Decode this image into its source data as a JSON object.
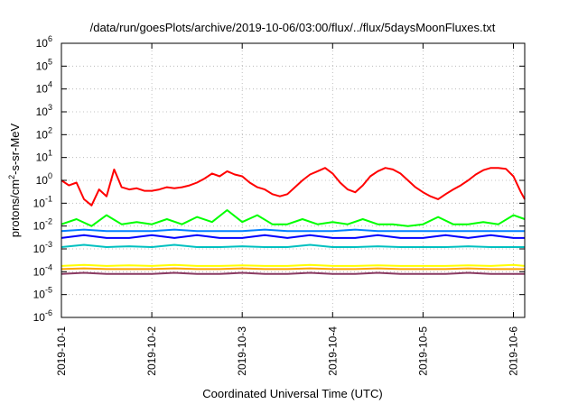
{
  "chart_data": {
    "type": "line",
    "title": "/data/run/goesPlots/archive/2019-10-06/03:00/flux/../flux/5daysMoonFluxes.txt",
    "xlabel": "Coordinated Universal Time (UTC)",
    "ylabel": {
      "pre": "protons/cm",
      "sup": "2",
      "post": "-s-sr-MeV"
    },
    "x_range": [
      "2019-10-01T00:00",
      "2019-10-06T03:00"
    ],
    "y_scale": "log",
    "ylim": [
      1e-06,
      1000000.0
    ],
    "grid": true,
    "legend": "none",
    "x_ticks": [
      "2019-10-1",
      "2019-10-2",
      "2019-10-3",
      "2019-10-4",
      "2019-10-5",
      "2019-10-6"
    ],
    "y_ticks": [
      {
        "base": "10",
        "exp": "6"
      },
      {
        "base": "10",
        "exp": "5"
      },
      {
        "base": "10",
        "exp": "4"
      },
      {
        "base": "10",
        "exp": "3"
      },
      {
        "base": "10",
        "exp": "2"
      },
      {
        "base": "10",
        "exp": "1"
      },
      {
        "base": "10",
        "exp": "0"
      },
      {
        "base": "10",
        "exp": "-1"
      },
      {
        "base": "10",
        "exp": "-2"
      },
      {
        "base": "10",
        "exp": "-3"
      },
      {
        "base": "10",
        "exp": "-4"
      },
      {
        "base": "10",
        "exp": "-5"
      },
      {
        "base": "10",
        "exp": "-6"
      }
    ],
    "series": [
      {
        "color": "#ff0000",
        "x": [
          "2019-10-01T00:00",
          "2019-10-01T02:00",
          "2019-10-01T04:00",
          "2019-10-01T06:00",
          "2019-10-01T08:00",
          "2019-10-01T10:00",
          "2019-10-01T12:00",
          "2019-10-01T14:00",
          "2019-10-01T16:00",
          "2019-10-01T18:00",
          "2019-10-01T20:00",
          "2019-10-01T22:00",
          "2019-10-02T00:00",
          "2019-10-02T02:00",
          "2019-10-02T04:00",
          "2019-10-02T06:00",
          "2019-10-02T08:00",
          "2019-10-02T10:00",
          "2019-10-02T12:00",
          "2019-10-02T14:00",
          "2019-10-02T16:00",
          "2019-10-02T18:00",
          "2019-10-02T20:00",
          "2019-10-02T22:00",
          "2019-10-03T00:00",
          "2019-10-03T02:00",
          "2019-10-03T04:00",
          "2019-10-03T06:00",
          "2019-10-03T08:00",
          "2019-10-03T10:00",
          "2019-10-03T12:00",
          "2019-10-03T14:00",
          "2019-10-03T16:00",
          "2019-10-03T18:00",
          "2019-10-03T20:00",
          "2019-10-03T22:00",
          "2019-10-04T00:00",
          "2019-10-04T02:00",
          "2019-10-04T04:00",
          "2019-10-04T06:00",
          "2019-10-04T08:00",
          "2019-10-04T10:00",
          "2019-10-04T12:00",
          "2019-10-04T14:00",
          "2019-10-04T16:00",
          "2019-10-04T18:00",
          "2019-10-04T20:00",
          "2019-10-04T22:00",
          "2019-10-05T00:00",
          "2019-10-05T02:00",
          "2019-10-05T04:00",
          "2019-10-05T06:00",
          "2019-10-05T08:00",
          "2019-10-05T10:00",
          "2019-10-05T12:00",
          "2019-10-05T14:00",
          "2019-10-05T16:00",
          "2019-10-05T18:00",
          "2019-10-05T20:00",
          "2019-10-05T22:00",
          "2019-10-06T00:00",
          "2019-10-06T02:00",
          "2019-10-06T03:00"
        ],
        "y": [
          1.0,
          0.6,
          0.8,
          0.15,
          0.08,
          0.4,
          0.2,
          3.0,
          0.5,
          0.4,
          0.45,
          0.35,
          0.35,
          0.4,
          0.5,
          0.45,
          0.5,
          0.6,
          0.8,
          1.2,
          2.0,
          1.5,
          2.5,
          1.8,
          1.5,
          0.8,
          0.5,
          0.4,
          0.25,
          0.2,
          0.25,
          0.5,
          1.0,
          1.8,
          2.5,
          3.5,
          2.0,
          0.8,
          0.4,
          0.3,
          0.6,
          1.5,
          2.5,
          3.5,
          3.0,
          2.0,
          1.0,
          0.5,
          0.3,
          0.2,
          0.15,
          0.25,
          0.4,
          0.6,
          1.0,
          1.8,
          2.8,
          3.5,
          3.5,
          3.2,
          1.5,
          0.3,
          0.15
        ]
      },
      {
        "color": "#00ff00",
        "x": [
          "2019-10-01T00:00",
          "2019-10-01T04:00",
          "2019-10-01T08:00",
          "2019-10-01T12:00",
          "2019-10-01T16:00",
          "2019-10-01T20:00",
          "2019-10-02T00:00",
          "2019-10-02T04:00",
          "2019-10-02T08:00",
          "2019-10-02T12:00",
          "2019-10-02T16:00",
          "2019-10-02T20:00",
          "2019-10-03T00:00",
          "2019-10-03T04:00",
          "2019-10-03T08:00",
          "2019-10-03T12:00",
          "2019-10-03T16:00",
          "2019-10-03T20:00",
          "2019-10-04T00:00",
          "2019-10-04T04:00",
          "2019-10-04T08:00",
          "2019-10-04T12:00",
          "2019-10-04T16:00",
          "2019-10-04T20:00",
          "2019-10-05T00:00",
          "2019-10-05T04:00",
          "2019-10-05T08:00",
          "2019-10-05T12:00",
          "2019-10-05T16:00",
          "2019-10-05T20:00",
          "2019-10-06T00:00",
          "2019-10-06T03:00"
        ],
        "y": [
          0.012,
          0.02,
          0.01,
          0.03,
          0.012,
          0.015,
          0.012,
          0.02,
          0.012,
          0.025,
          0.015,
          0.05,
          0.015,
          0.03,
          0.012,
          0.012,
          0.02,
          0.012,
          0.015,
          0.012,
          0.02,
          0.012,
          0.012,
          0.01,
          0.012,
          0.025,
          0.012,
          0.012,
          0.015,
          0.012,
          0.03,
          0.02
        ]
      },
      {
        "color": "#0080ff",
        "x": [
          "2019-10-01T00:00",
          "2019-10-01T06:00",
          "2019-10-01T12:00",
          "2019-10-01T18:00",
          "2019-10-02T00:00",
          "2019-10-02T06:00",
          "2019-10-02T12:00",
          "2019-10-02T18:00",
          "2019-10-03T00:00",
          "2019-10-03T06:00",
          "2019-10-03T12:00",
          "2019-10-03T18:00",
          "2019-10-04T00:00",
          "2019-10-04T06:00",
          "2019-10-04T12:00",
          "2019-10-04T18:00",
          "2019-10-05T00:00",
          "2019-10-05T06:00",
          "2019-10-05T12:00",
          "2019-10-05T18:00",
          "2019-10-06T00:00",
          "2019-10-06T03:00"
        ],
        "y": [
          0.006,
          0.007,
          0.006,
          0.006,
          0.006,
          0.007,
          0.006,
          0.006,
          0.006,
          0.007,
          0.006,
          0.006,
          0.006,
          0.007,
          0.006,
          0.006,
          0.006,
          0.006,
          0.006,
          0.006,
          0.006,
          0.006
        ]
      },
      {
        "color": "#0000ff",
        "x": [
          "2019-10-01T00:00",
          "2019-10-01T06:00",
          "2019-10-01T12:00",
          "2019-10-01T18:00",
          "2019-10-02T00:00",
          "2019-10-02T06:00",
          "2019-10-02T12:00",
          "2019-10-02T18:00",
          "2019-10-03T00:00",
          "2019-10-03T06:00",
          "2019-10-03T12:00",
          "2019-10-03T18:00",
          "2019-10-04T00:00",
          "2019-10-04T06:00",
          "2019-10-04T12:00",
          "2019-10-04T18:00",
          "2019-10-05T00:00",
          "2019-10-05T06:00",
          "2019-10-05T12:00",
          "2019-10-05T18:00",
          "2019-10-06T00:00",
          "2019-10-06T03:00"
        ],
        "y": [
          0.003,
          0.004,
          0.003,
          0.003,
          0.004,
          0.003,
          0.004,
          0.003,
          0.003,
          0.004,
          0.003,
          0.004,
          0.003,
          0.003,
          0.004,
          0.003,
          0.003,
          0.004,
          0.003,
          0.004,
          0.003,
          0.003
        ]
      },
      {
        "color": "#00c0c0",
        "x": [
          "2019-10-01T00:00",
          "2019-10-01T06:00",
          "2019-10-01T12:00",
          "2019-10-01T18:00",
          "2019-10-02T00:00",
          "2019-10-02T06:00",
          "2019-10-02T12:00",
          "2019-10-02T18:00",
          "2019-10-03T00:00",
          "2019-10-03T06:00",
          "2019-10-03T12:00",
          "2019-10-03T18:00",
          "2019-10-04T00:00",
          "2019-10-04T06:00",
          "2019-10-04T12:00",
          "2019-10-04T18:00",
          "2019-10-05T00:00",
          "2019-10-05T06:00",
          "2019-10-05T12:00",
          "2019-10-05T18:00",
          "2019-10-06T00:00",
          "2019-10-06T03:00"
        ],
        "y": [
          0.0012,
          0.0015,
          0.0012,
          0.0013,
          0.0012,
          0.0015,
          0.0012,
          0.0012,
          0.0013,
          0.0012,
          0.0012,
          0.0015,
          0.0012,
          0.0012,
          0.0013,
          0.0012,
          0.0012,
          0.0012,
          0.0013,
          0.0012,
          0.0012,
          0.0012
        ]
      },
      {
        "color": "#ffff00",
        "x": [
          "2019-10-01T00:00",
          "2019-10-01T06:00",
          "2019-10-01T12:00",
          "2019-10-01T18:00",
          "2019-10-02T00:00",
          "2019-10-02T06:00",
          "2019-10-02T12:00",
          "2019-10-02T18:00",
          "2019-10-03T00:00",
          "2019-10-03T06:00",
          "2019-10-03T12:00",
          "2019-10-03T18:00",
          "2019-10-04T00:00",
          "2019-10-04T06:00",
          "2019-10-04T12:00",
          "2019-10-04T18:00",
          "2019-10-05T00:00",
          "2019-10-05T06:00",
          "2019-10-05T12:00",
          "2019-10-05T18:00",
          "2019-10-06T00:00",
          "2019-10-06T03:00"
        ],
        "y": [
          0.00018,
          0.0002,
          0.00018,
          0.00019,
          0.00018,
          0.0002,
          0.00018,
          0.00018,
          0.00019,
          0.00018,
          0.00018,
          0.0002,
          0.00018,
          0.00018,
          0.00019,
          0.00018,
          0.00018,
          0.00018,
          0.00019,
          0.00018,
          0.0002,
          0.00018
        ]
      },
      {
        "color": "#ffa500",
        "x": [
          "2019-10-01T00:00",
          "2019-10-01T06:00",
          "2019-10-01T12:00",
          "2019-10-01T18:00",
          "2019-10-02T00:00",
          "2019-10-02T06:00",
          "2019-10-02T12:00",
          "2019-10-02T18:00",
          "2019-10-03T00:00",
          "2019-10-03T06:00",
          "2019-10-03T12:00",
          "2019-10-03T18:00",
          "2019-10-04T00:00",
          "2019-10-04T06:00",
          "2019-10-04T12:00",
          "2019-10-04T18:00",
          "2019-10-05T00:00",
          "2019-10-05T06:00",
          "2019-10-05T12:00",
          "2019-10-05T18:00",
          "2019-10-06T00:00",
          "2019-10-06T03:00"
        ],
        "y": [
          0.00013,
          0.00014,
          0.00013,
          0.00013,
          0.00013,
          0.00014,
          0.00013,
          0.00013,
          0.00014,
          0.00013,
          0.00013,
          0.00014,
          0.00013,
          0.00013,
          0.00014,
          0.00013,
          0.00013,
          0.00013,
          0.00014,
          0.00013,
          0.00013,
          0.00013
        ]
      },
      {
        "color": "#8b3a62",
        "x": [
          "2019-10-01T00:00",
          "2019-10-01T06:00",
          "2019-10-01T12:00",
          "2019-10-01T18:00",
          "2019-10-02T00:00",
          "2019-10-02T06:00",
          "2019-10-02T12:00",
          "2019-10-02T18:00",
          "2019-10-03T00:00",
          "2019-10-03T06:00",
          "2019-10-03T12:00",
          "2019-10-03T18:00",
          "2019-10-04T00:00",
          "2019-10-04T06:00",
          "2019-10-04T12:00",
          "2019-10-04T18:00",
          "2019-10-05T00:00",
          "2019-10-05T06:00",
          "2019-10-05T12:00",
          "2019-10-05T18:00",
          "2019-10-06T00:00",
          "2019-10-06T03:00"
        ],
        "y": [
          8e-05,
          9e-05,
          8e-05,
          8e-05,
          8e-05,
          9e-05,
          8e-05,
          8e-05,
          9e-05,
          8e-05,
          8e-05,
          9e-05,
          8e-05,
          8e-05,
          9e-05,
          8e-05,
          8e-05,
          8e-05,
          9e-05,
          8e-05,
          8e-05,
          8e-05
        ]
      }
    ]
  }
}
